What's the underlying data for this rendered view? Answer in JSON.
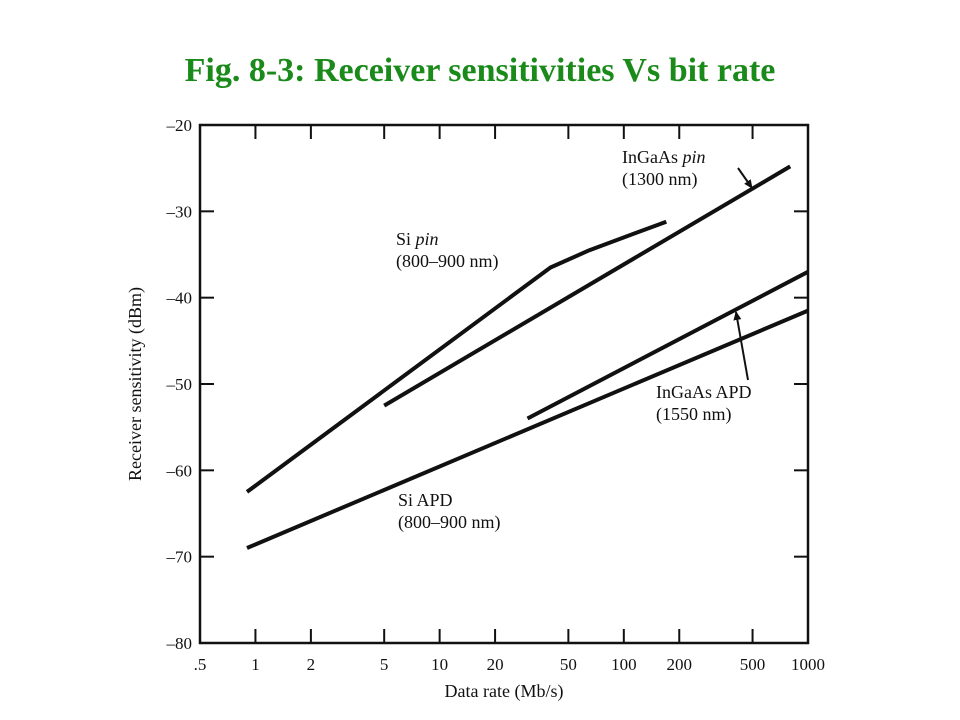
{
  "title": "Fig. 8-3: Receiver sensitivities Vs bit rate",
  "chart_data": {
    "type": "line",
    "title": "Fig. 8-3: Receiver sensitivities Vs bit rate",
    "xlabel": "Data rate (Mb/s)",
    "ylabel": "Receiver sensitivity (dBm)",
    "x_scale": "log",
    "xlim": [
      0.5,
      1000
    ],
    "ylim": [
      -80,
      -20
    ],
    "x_ticks": [
      0.5,
      1,
      2,
      5,
      10,
      20,
      50,
      100,
      200,
      500,
      1000
    ],
    "x_tick_labels": [
      ".5",
      "1",
      "2",
      "5",
      "10",
      "20",
      "50",
      "100",
      "200",
      "500",
      "1000"
    ],
    "y_ticks": [
      -20,
      -30,
      -40,
      -50,
      -60,
      -70,
      -80
    ],
    "y_tick_labels": [
      "–20",
      "–30",
      "–40",
      "–50",
      "–60",
      "–70",
      "–80"
    ],
    "series": [
      {
        "key": "si-pin",
        "points": [
          [
            0.9,
            -62.5
          ],
          [
            40,
            -36.5
          ],
          [
            65,
            -34.5
          ],
          [
            170,
            -31.2
          ]
        ]
      },
      {
        "key": "ingaas-pin",
        "points": [
          [
            5,
            -52.5
          ],
          [
            800,
            -24.8
          ]
        ]
      },
      {
        "key": "ingaas-apd",
        "points": [
          [
            30,
            -54
          ],
          [
            1000,
            -37
          ]
        ]
      },
      {
        "key": "si-apd",
        "points": [
          [
            0.9,
            -69
          ],
          [
            1000,
            -41.5
          ]
        ]
      }
    ],
    "annotations": [
      {
        "key": "si-pin",
        "lines": [
          {
            "text": "Si ",
            "italic": "pin"
          },
          {
            "text": "(800–900 nm)"
          }
        ]
      },
      {
        "key": "ingaas-pin",
        "lines": [
          {
            "text": "InGaAs ",
            "italic": "pin"
          },
          {
            "text": "(1300 nm)"
          }
        ]
      },
      {
        "key": "ingaas-apd",
        "lines": [
          {
            "text": "InGaAs APD"
          },
          {
            "text": "(1550 nm)"
          }
        ]
      },
      {
        "key": "si-apd",
        "lines": [
          {
            "text": "Si APD"
          },
          {
            "text": "(800–900 nm)"
          }
        ]
      }
    ],
    "grid": false,
    "legend": "none"
  }
}
